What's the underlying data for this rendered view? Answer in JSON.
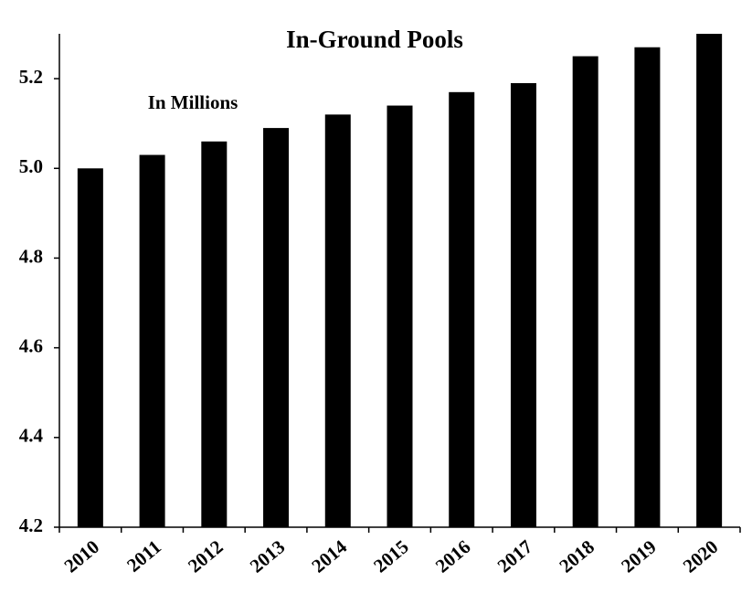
{
  "chart_data": {
    "type": "bar",
    "title": "In-Ground Pools",
    "annotation": "In Millions",
    "categories": [
      "2010",
      "2011",
      "2012",
      "2013",
      "2014",
      "2015",
      "2016",
      "2017",
      "2018",
      "2019",
      "2020"
    ],
    "values": [
      5.0,
      5.03,
      5.06,
      5.09,
      5.12,
      5.14,
      5.17,
      5.19,
      5.25,
      5.27,
      5.3
    ],
    "color": "#000000",
    "ylim": [
      4.2,
      5.3
    ],
    "yticks": [
      4.2,
      4.4,
      4.6,
      4.8,
      {
        "value": 5,
        "label": "5.0"
      },
      5.2
    ],
    "grid": false
  }
}
